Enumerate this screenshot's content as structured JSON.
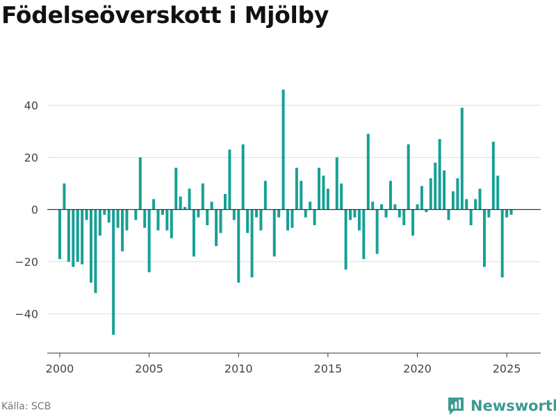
{
  "title": "Födelseöverskott i Mjölby",
  "source": "Källa: SCB",
  "brand": {
    "name": "Newsworthy",
    "icon": "newsworthy-logo-icon",
    "color": "#3d9a91"
  },
  "colors": {
    "bar": "#17a095",
    "grid": "#dddddd",
    "zero_line": "#333333",
    "axis_text": "#444444"
  },
  "chart_data": {
    "type": "bar",
    "title": "Födelseöverskott i Mjölby",
    "xlabel": "",
    "ylabel": "",
    "ylim": [
      -55,
      55
    ],
    "xlim": [
      1999.3,
      2026.9
    ],
    "yticks": [
      -40,
      -20,
      0,
      20,
      40
    ],
    "ytick_labels": [
      "−40",
      "−20",
      "0",
      "20",
      "40"
    ],
    "xticks": [
      2000,
      2005,
      2010,
      2015,
      2020,
      2025
    ],
    "xtick_labels": [
      "2000",
      "2005",
      "2010",
      "2015",
      "2020",
      "2025"
    ],
    "grid": true,
    "bar_period": "quarter",
    "start": "2000-01",
    "values": [
      -19,
      10,
      -20,
      -22,
      -20,
      -21,
      -4,
      -28,
      -32,
      -10,
      -2,
      -5,
      -48,
      -7,
      -16,
      -8,
      0,
      -4,
      20,
      -7,
      -24,
      4,
      -8,
      -2,
      -8,
      -11,
      16,
      5,
      1,
      8,
      -18,
      -3,
      10,
      -6,
      3,
      -14,
      -9,
      6,
      23,
      -4,
      -28,
      25,
      -9,
      -26,
      -3,
      -8,
      11,
      0,
      -18,
      -3,
      46,
      -8,
      -7,
      16,
      11,
      -3,
      3,
      -6,
      16,
      13,
      8,
      0,
      20,
      10,
      -23,
      -4,
      -3,
      -8,
      -19,
      29,
      3,
      -17,
      2,
      -3,
      11,
      2,
      -3,
      -6,
      25,
      -10,
      2,
      9,
      -1,
      12,
      18,
      27,
      15,
      -4,
      7,
      12,
      39,
      4,
      -6,
      4,
      8,
      -22,
      -3,
      26,
      13,
      -26,
      -3,
      -2
    ]
  }
}
